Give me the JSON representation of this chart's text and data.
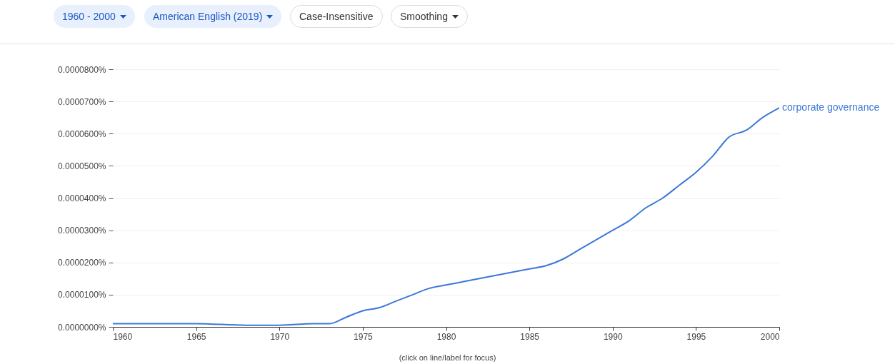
{
  "chart_data": {
    "type": "line",
    "annotations": [
      "1960 - 2000",
      "American English (2019)",
      "Case-Insensitive",
      "Smoothing",
      "(click on line/label for focus)"
    ],
    "x": [
      1960,
      1965,
      1968,
      1970,
      1972,
      1973,
      1974,
      1975,
      1976,
      1977,
      1978,
      1979,
      1980,
      1981,
      1982,
      1983,
      1984,
      1985,
      1986,
      1987,
      1988,
      1989,
      1990,
      1991,
      1992,
      1993,
      1994,
      1995,
      1996,
      1997,
      1998,
      1999,
      2000
    ],
    "series": [
      {
        "name": "corporate governance",
        "color": "#3b78d8",
        "values": [
          1e-06,
          1e-06,
          5e-07,
          5e-07,
          1e-06,
          1e-06,
          3e-06,
          5e-06,
          6e-06,
          8e-06,
          1e-05,
          1.2e-05,
          1.3e-05,
          1.4e-05,
          1.5e-05,
          1.6e-05,
          1.7e-05,
          1.8e-05,
          1.9e-05,
          2.1e-05,
          2.4e-05,
          2.7e-05,
          3e-05,
          3.3e-05,
          3.7e-05,
          4e-05,
          4.4e-05,
          4.8e-05,
          5.3e-05,
          5.9e-05,
          6.1e-05,
          6.5e-05,
          6.8e-05
        ]
      }
    ],
    "xlim": [
      1960,
      2000
    ],
    "xticks": [
      1960,
      1965,
      1970,
      1975,
      1980,
      1985,
      1990,
      1995,
      2000
    ],
    "ylim": [
      0,
      8e-05
    ],
    "yticks": [
      {
        "value": 0,
        "label": "0.0000000%"
      },
      {
        "value": 1e-05,
        "label": "0.0000100%"
      },
      {
        "value": 2e-05,
        "label": "0.0000200%"
      },
      {
        "value": 3e-05,
        "label": "0.0000300%"
      },
      {
        "value": 4e-05,
        "label": "0.0000400%"
      },
      {
        "value": 5e-05,
        "label": "0.0000500%"
      },
      {
        "value": 6e-05,
        "label": "0.0000600%"
      },
      {
        "value": 7e-05,
        "label": "0.0000700%"
      },
      {
        "value": 8e-05,
        "label": "0.0000800%"
      }
    ],
    "grid": "y",
    "legend": false,
    "marker": "none",
    "line_style": "solid"
  }
}
